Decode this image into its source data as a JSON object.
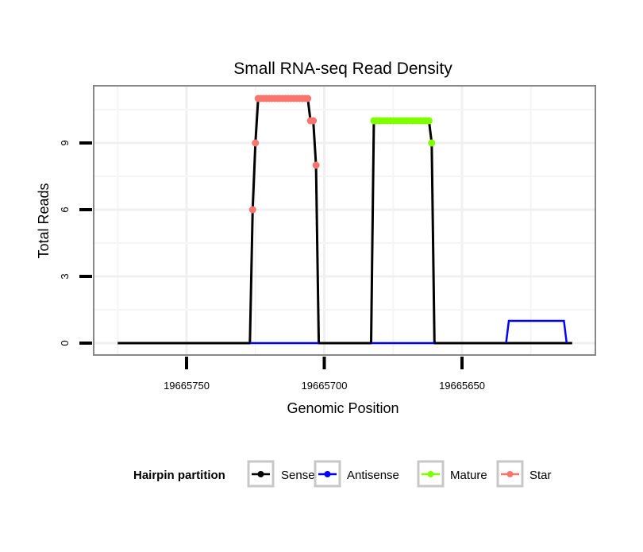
{
  "chart_data": {
    "type": "line",
    "title": "Small RNA-seq Read Density",
    "xlabel": "Genomic Position",
    "ylabel": "Total Reads",
    "xlim": [
      19665784,
      19665602
    ],
    "x_reversed": true,
    "ylim": [
      -0.6,
      11.6
    ],
    "x_ticks": [
      19665750,
      19665700,
      19665650
    ],
    "x_tick_labels": [
      "19665750",
      "19665700",
      "19665650"
    ],
    "y_ticks": [
      0,
      3,
      6,
      9
    ],
    "y_tick_labels": [
      "0",
      "3",
      "6",
      "9"
    ],
    "grid": true,
    "legend": {
      "title": "Hairpin partition",
      "placement": "bottom"
    },
    "series": [
      {
        "name": "Sense",
        "color": "#000000",
        "style": "line",
        "points": [
          [
            19665775,
            0
          ],
          [
            19665727,
            0
          ],
          [
            19665726,
            6
          ],
          [
            19665725,
            9
          ],
          [
            19665724,
            11
          ],
          [
            19665706,
            11
          ],
          [
            19665705,
            10
          ],
          [
            19665704,
            10
          ],
          [
            19665703,
            8
          ],
          [
            19665702,
            0
          ],
          [
            19665683,
            0
          ],
          [
            19665682,
            10
          ],
          [
            19665662,
            10
          ],
          [
            19665661,
            9
          ],
          [
            19665660,
            0
          ],
          [
            19665610,
            0
          ]
        ]
      },
      {
        "name": "Antisense",
        "color": "#0000ff",
        "style": "line",
        "segments": [
          [
            [
              19665727,
              0
            ],
            [
              19665702,
              0
            ]
          ],
          [
            [
              19665683,
              0
            ],
            [
              19665660,
              0
            ]
          ],
          [
            [
              19665634,
              0
            ],
            [
              19665633,
              1
            ],
            [
              19665613,
              1
            ],
            [
              19665612,
              0
            ]
          ]
        ]
      },
      {
        "name": "Mature",
        "color": "#7fff00",
        "style": "points",
        "points": [
          [
            19665682,
            10
          ],
          [
            19665681,
            10
          ],
          [
            19665680,
            10
          ],
          [
            19665679,
            10
          ],
          [
            19665678,
            10
          ],
          [
            19665677,
            10
          ],
          [
            19665676,
            10
          ],
          [
            19665675,
            10
          ],
          [
            19665674,
            10
          ],
          [
            19665673,
            10
          ],
          [
            19665672,
            10
          ],
          [
            19665671,
            10
          ],
          [
            19665670,
            10
          ],
          [
            19665669,
            10
          ],
          [
            19665668,
            10
          ],
          [
            19665667,
            10
          ],
          [
            19665666,
            10
          ],
          [
            19665665,
            10
          ],
          [
            19665664,
            10
          ],
          [
            19665663,
            10
          ],
          [
            19665662,
            10
          ],
          [
            19665661,
            9
          ]
        ]
      },
      {
        "name": "Star",
        "color": "#f8766d",
        "style": "points",
        "points": [
          [
            19665726,
            6
          ],
          [
            19665725,
            9
          ],
          [
            19665724,
            11
          ],
          [
            19665723,
            11
          ],
          [
            19665722,
            11
          ],
          [
            19665721,
            11
          ],
          [
            19665720,
            11
          ],
          [
            19665719,
            11
          ],
          [
            19665718,
            11
          ],
          [
            19665717,
            11
          ],
          [
            19665716,
            11
          ],
          [
            19665715,
            11
          ],
          [
            19665714,
            11
          ],
          [
            19665713,
            11
          ],
          [
            19665712,
            11
          ],
          [
            19665711,
            11
          ],
          [
            19665710,
            11
          ],
          [
            19665709,
            11
          ],
          [
            19665708,
            11
          ],
          [
            19665707,
            11
          ],
          [
            19665706,
            11
          ],
          [
            19665705,
            10
          ],
          [
            19665704,
            10
          ],
          [
            19665703,
            8
          ]
        ]
      }
    ]
  }
}
